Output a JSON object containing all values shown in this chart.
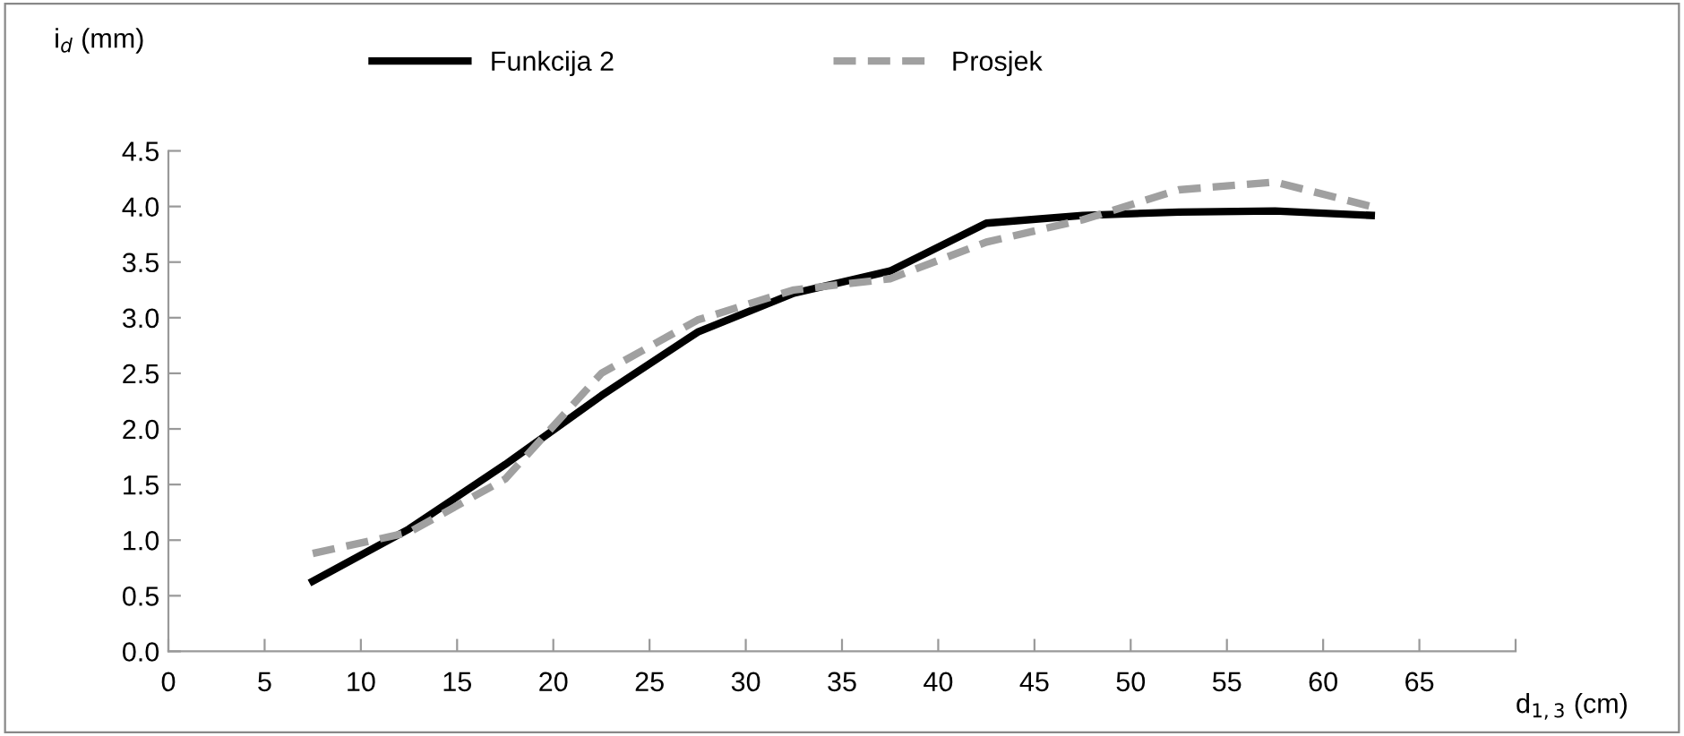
{
  "chart_data": {
    "type": "line",
    "xlabel": "d$_{1,3}$ (cm)",
    "ylabel": "i$_{d}$ (mm)",
    "x": [
      7.5,
      12.5,
      17.5,
      22.5,
      27.5,
      32.5,
      37.5,
      42.5,
      47.5,
      52.5,
      57.5,
      62.5
    ],
    "series": [
      {
        "name": "Funkcija 2",
        "color": "#000000",
        "line_style": "solid",
        "values": [
          0.63,
          1.1,
          1.68,
          2.3,
          2.87,
          3.22,
          3.42,
          3.85,
          3.92,
          3.95,
          3.96,
          3.92
        ]
      },
      {
        "name": "Prosjek",
        "color": "#a0a0a0",
        "line_style": "dashed",
        "values": [
          0.88,
          1.07,
          1.55,
          2.5,
          2.98,
          3.25,
          3.35,
          3.68,
          3.88,
          4.15,
          4.22,
          4.0
        ]
      }
    ],
    "xlim": [
      0,
      70
    ],
    "xticks": [
      0,
      5,
      10,
      15,
      20,
      25,
      30,
      35,
      40,
      45,
      50,
      55,
      60,
      65,
      {
        "value": 70,
        "label": null
      }
    ],
    "ylim": [
      0,
      4.5
    ],
    "yticks": [
      {
        "value": 0,
        "label": "0.0"
      },
      0.5,
      {
        "value": 1,
        "label": "1.0"
      },
      1.5,
      {
        "value": 2,
        "label": "2.0"
      },
      2.5,
      {
        "value": 3,
        "label": "3.0"
      },
      3.5,
      {
        "value": 4,
        "label": "4.0"
      },
      4.5
    ],
    "grid": false,
    "legend": "top",
    "marker": "none"
  }
}
